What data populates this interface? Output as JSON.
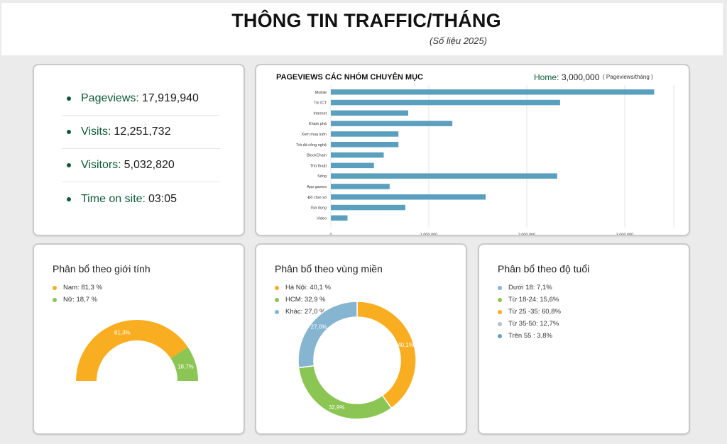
{
  "header": {
    "title": "THÔNG TIN TRAFFIC/THÁNG",
    "subtitle": "(Số liệu 2025)"
  },
  "stats": [
    {
      "label": "Pageviews:",
      "value": "17,919,940"
    },
    {
      "label": "Visits:",
      "value": "12,251,732"
    },
    {
      "label": "Visitors:",
      "value": "5,032,820"
    },
    {
      "label": "Time on site:",
      "value": " 03:05"
    }
  ],
  "pageviews_panel": {
    "title": "PAGEVIEWS CÁC NHÓM CHUYÊN MỤC",
    "home_label": "Home:",
    "home_value": "3,000,000",
    "home_unit": "( Pageviews/tháng )"
  },
  "colors": {
    "accent_green": "#0e5a3a",
    "bar": "#5a9fbd",
    "orange": "#f9ae21",
    "green": "#8bc553",
    "blue": "#86b5d1",
    "grey": "#b9bfc9",
    "steel": "#6b9ec3"
  },
  "gender_panel": {
    "title": "Phân bổ theo giới tính"
  },
  "region_panel": {
    "title": "Phân bổ theo vùng miền"
  },
  "age_panel": {
    "title": "Phân bổ theo độ tuổi"
  },
  "chart_data": [
    {
      "type": "bar",
      "orientation": "horizontal",
      "categories": [
        "Mobile",
        "Tin ICT",
        "Internet",
        "Khám phá",
        "Xem mua luôn",
        "Trà đá công nghệ",
        "BlockChain",
        "Thủ thuật",
        "Sống",
        "App games",
        "Đồ chơi số",
        "Gia dụng",
        "Video"
      ],
      "values": [
        3300000,
        2340000,
        790000,
        1240000,
        690000,
        690000,
        540000,
        440000,
        2310000,
        600000,
        1580000,
        760000,
        170000
      ],
      "xticks": [
        "0",
        "1.000.000",
        "2.000.000",
        "3.000.000"
      ],
      "xlim": [
        0,
        3500000
      ],
      "grid": true
    },
    {
      "type": "pie",
      "variant": "half-donut",
      "legend_labels": [
        "Nam: 81,3 %",
        "Nữ: 18,7 %"
      ],
      "slice_labels": [
        "81,3%",
        "18,7%"
      ],
      "values": [
        81.3,
        18.7
      ],
      "colors": [
        "#f9ae21",
        "#8bc553"
      ]
    },
    {
      "type": "pie",
      "variant": "donut",
      "legend_labels": [
        "Hà Nội: 40,1 %",
        "HCM: 32,9 %",
        "Khác: 27,0 %"
      ],
      "slice_labels": [
        "40,1%",
        "32,9%",
        "27,0%"
      ],
      "values": [
        40.1,
        32.9,
        27.0
      ],
      "colors": [
        "#f9ae21",
        "#8bc553",
        "#86b5d1"
      ]
    },
    {
      "type": "pie",
      "variant": "legend-only",
      "legend_labels": [
        "Dưới 18: 7,1%",
        "Từ 18-24: 15,6%",
        "Từ 25 -35: 60,8%",
        "Từ 35-50: 12,7%",
        "Trên 55 : 3,8%"
      ],
      "values": [
        7.1,
        15.6,
        60.8,
        12.7,
        3.8
      ],
      "colors": [
        "#86b5d1",
        "#8bc553",
        "#f9ae21",
        "#b9bfc9",
        "#6b9ec3"
      ]
    }
  ]
}
